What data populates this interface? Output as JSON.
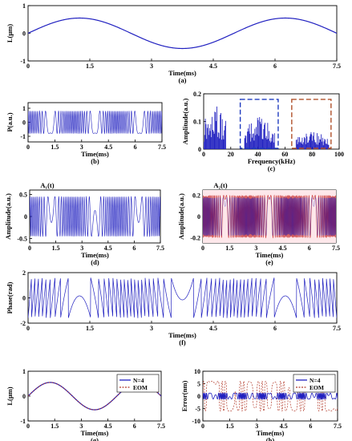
{
  "colors": {
    "signal": "#2020c0",
    "red_signal": "#c62828",
    "eom": "#b23a2a",
    "dash_blue": "#1f3bbf",
    "dash_red": "#b0502a",
    "axis": "#000000"
  },
  "chart_data": [
    {
      "id": "a",
      "type": "line",
      "caption": "(a)",
      "xlabel": "Time(ms)",
      "ylabel": "L(μm)",
      "xlim": [
        0,
        7.5
      ],
      "ylim": [
        -1,
        1
      ],
      "xticks": [
        "0",
        "1.5",
        "3",
        "4.5",
        "6",
        "7.5"
      ],
      "yticks": [
        "1",
        "0",
        "-1"
      ],
      "series": [
        {
          "function": "sine",
          "amplitude": 0.55,
          "period_ms": 5.0
        }
      ]
    },
    {
      "id": "b",
      "type": "line",
      "caption": "(b)",
      "xlabel": "Time(ms)",
      "ylabel": "P(a.u.)",
      "xlim": [
        0,
        7.5
      ],
      "ylim": [
        -1.4,
        1.4
      ],
      "xticks": [
        "0",
        "1.5",
        "3",
        "4.5",
        "6",
        "7.5"
      ],
      "yticks": [
        "1",
        "0",
        "-1"
      ],
      "series": [
        {
          "function": "interference",
          "amplitude": 0.8,
          "max_phase_rad": 60
        }
      ]
    },
    {
      "id": "c",
      "type": "bar",
      "caption": "(c)",
      "xlabel": "Frequency(kHz)",
      "ylabel": "Amplitude(a.u.)",
      "xlim": [
        0,
        100
      ],
      "ylim": [
        0,
        0.2
      ],
      "xticks": [
        "0",
        "20",
        "40",
        "60",
        "80",
        "100"
      ],
      "yticks": [
        "0.2",
        "0.1",
        "0"
      ],
      "bands": [
        {
          "from_khz": 0,
          "to_khz": 16,
          "peak": 0.18
        },
        {
          "from_khz": 30,
          "to_khz": 52,
          "peak": 0.13
        },
        {
          "from_khz": 68,
          "to_khz": 92,
          "peak": 0.07
        }
      ],
      "boxes": [
        {
          "from_khz": 27,
          "to_khz": 55,
          "top": 0.18,
          "color": "dash_blue"
        },
        {
          "from_khz": 65,
          "to_khz": 94,
          "top": 0.18,
          "color": "dash_red"
        }
      ]
    },
    {
      "id": "d",
      "type": "line",
      "caption": "(d)",
      "xlabel": "Time(ms)",
      "ylabel": "Amplitude(a.u.)",
      "legend": "A₁(t)",
      "xlim": [
        0,
        7.5
      ],
      "ylim": [
        -0.6,
        0.6
      ],
      "xticks": [
        "0",
        "1.5",
        "3",
        "4.5",
        "6",
        "7.5"
      ],
      "yticks": [
        "0.5",
        "0",
        "-0.5"
      ],
      "series": [
        {
          "function": "filtered-band",
          "amplitude": 0.45,
          "max_phase_rad": 60
        }
      ]
    },
    {
      "id": "e",
      "type": "line",
      "caption": "(e)",
      "xlabel": "Time(ms)",
      "ylabel": "Amplitude(a.u.)",
      "legend": "A₂(t)",
      "xlim": [
        0,
        7.5
      ],
      "ylim": [
        -0.25,
        0.25
      ],
      "xticks": [
        "0",
        "1.5",
        "3",
        "4.5",
        "6",
        "7.5"
      ],
      "yticks": [
        "0.2",
        "0",
        "-0.2"
      ],
      "series": [
        {
          "function": "filtered-band-2x",
          "amplitude": 0.2,
          "max_phase_rad": 120
        }
      ]
    },
    {
      "id": "f",
      "type": "line",
      "caption": "(f)",
      "xlabel": "Time(ms)",
      "ylabel": "Phase(rad)",
      "xlim": [
        0,
        7.5
      ],
      "ylim": [
        -2,
        2
      ],
      "xticks": [
        "0",
        "1.5",
        "3",
        "4.5",
        "6",
        "7.5"
      ],
      "yticks": [
        "2",
        "0",
        "-2"
      ],
      "series": [
        {
          "function": "wrapped-phase",
          "amplitude_rad": 1.6,
          "max_phase_rad": 60
        }
      ]
    },
    {
      "id": "g",
      "type": "line",
      "caption": "(g)",
      "xlabel": "Time(ms)",
      "ylabel": "L(μm)",
      "xlim": [
        0,
        7.5
      ],
      "ylim": [
        -1,
        1
      ],
      "xticks": [
        "0",
        "1.5",
        "3",
        "4.5",
        "6",
        "7.5"
      ],
      "yticks": [
        "1",
        "0",
        "-1"
      ],
      "legend_position": "top-right",
      "series": [
        {
          "name": "N=4",
          "color": "signal",
          "function": "sine",
          "amplitude": 0.55,
          "period_ms": 5.0
        },
        {
          "name": "EOM",
          "color": "eom",
          "function": "sine",
          "amplitude": 0.55,
          "period_ms": 5.0
        }
      ]
    },
    {
      "id": "h",
      "type": "line",
      "caption": "(h)",
      "xlabel": "Time(ms)",
      "ylabel": "Error(nm)",
      "xlim": [
        0,
        7.5
      ],
      "ylim": [
        -10,
        10
      ],
      "xticks": [
        "0",
        "1.5",
        "3",
        "4.5",
        "6",
        "7.5"
      ],
      "yticks": [
        "10",
        "5",
        "0",
        "-5",
        "-10"
      ],
      "legend_position": "top-right",
      "series": [
        {
          "name": "N=4",
          "color": "signal",
          "function": "small-error",
          "amplitude_nm": 1.5
        },
        {
          "name": "EOM",
          "color": "eom",
          "function": "periodic-error",
          "amplitude_nm": 6
        }
      ]
    }
  ]
}
